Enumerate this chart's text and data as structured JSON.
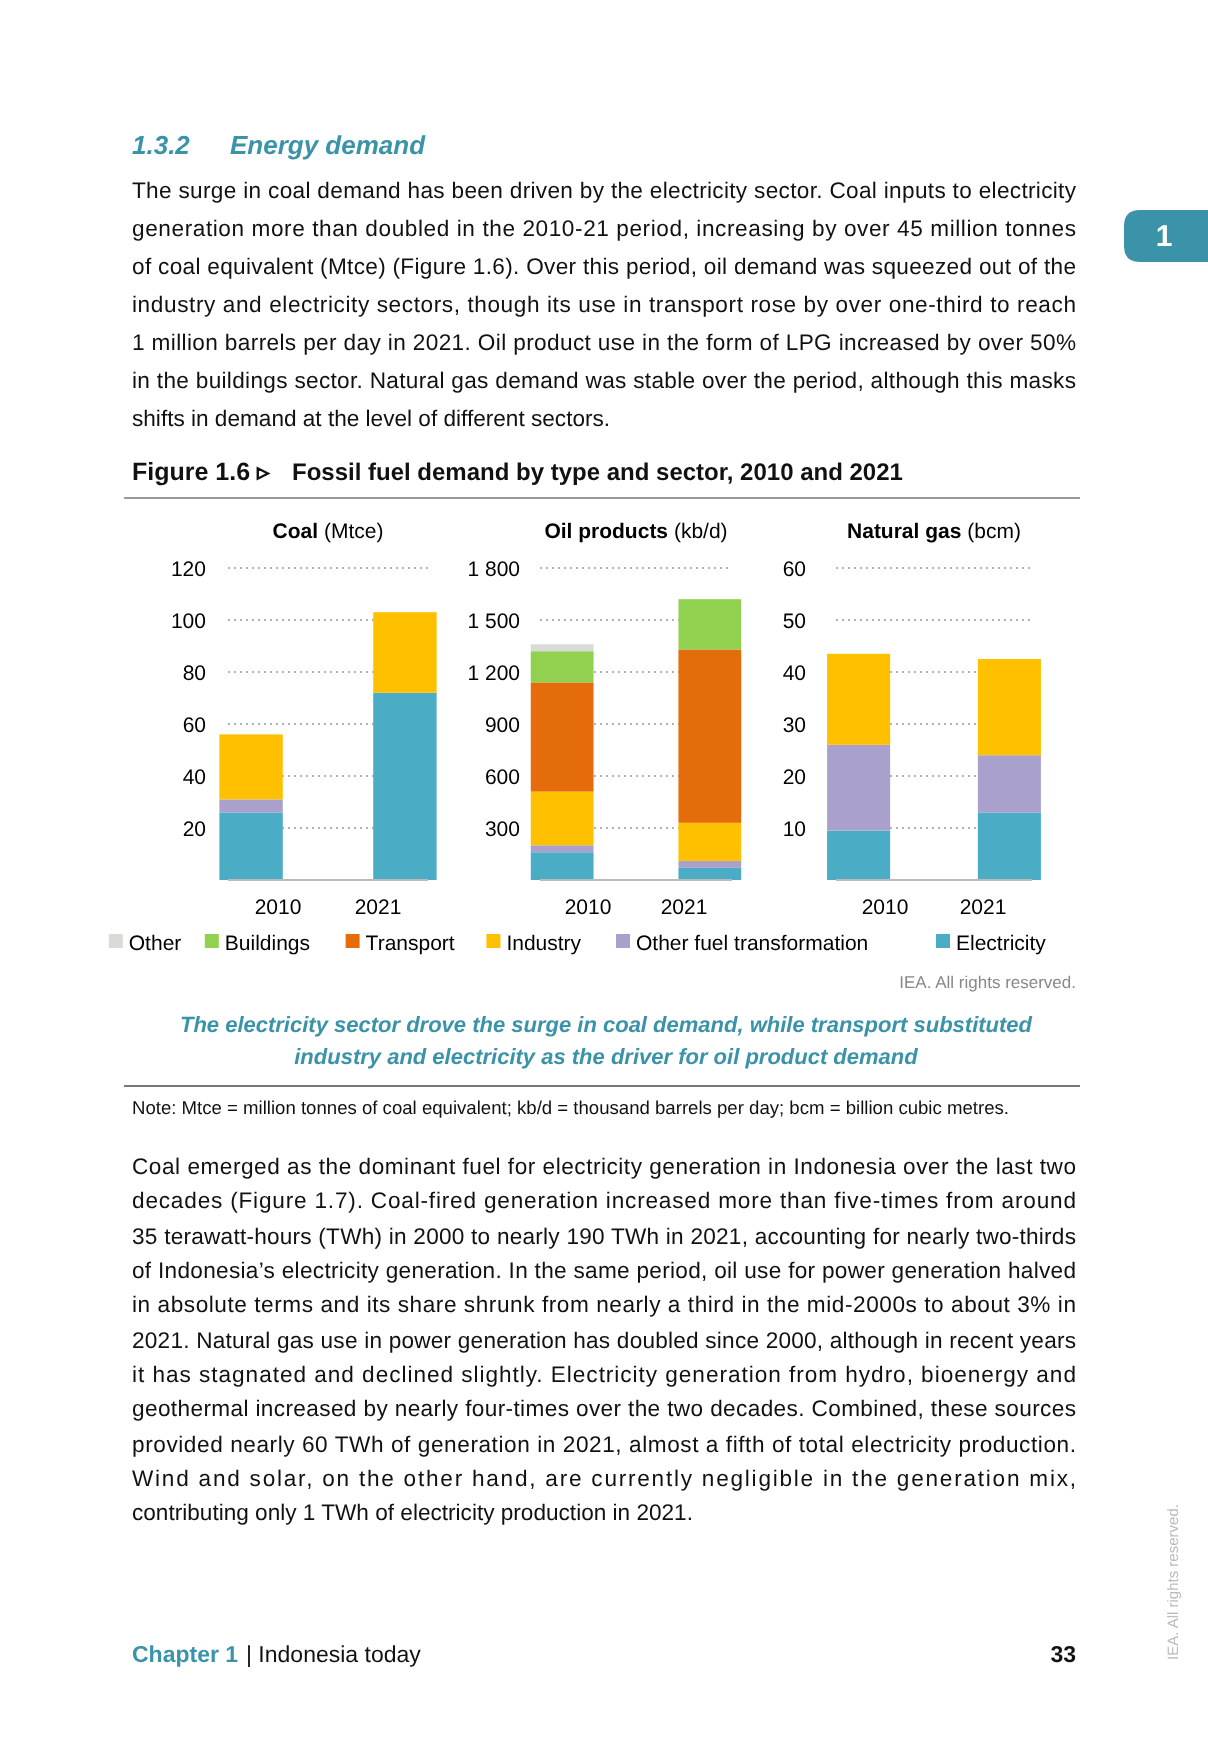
{
  "chart_data": [
    {
      "type": "bar",
      "stacked": true,
      "title": "Coal (Mtce)",
      "categories": [
        "2010",
        "2021"
      ],
      "ylim": [
        0,
        120
      ],
      "yticks": [
        {
          "value": 0,
          "label": null
        },
        20,
        40,
        60,
        80,
        100,
        120
      ],
      "grid": "y",
      "legend": "bottom",
      "series": [
        {
          "name": "Electricity",
          "color": "#4bacc6",
          "values": [
            26,
            72
          ]
        },
        {
          "name": "Other fuel transformation",
          "color": "#a9a1cc",
          "values": [
            5,
            null
          ]
        },
        {
          "name": "Industry",
          "color": "#ffc000",
          "values": [
            25,
            31
          ]
        },
        {
          "name": "Transport",
          "color": "#e46c0a",
          "values": [
            null,
            null
          ]
        },
        {
          "name": "Buildings",
          "color": "#92d050",
          "values": [
            null,
            null
          ]
        },
        {
          "name": "Other",
          "color": "#d9dcd6",
          "values": [
            null,
            null
          ]
        }
      ],
      "annotations": [
        "1.3.2",
        "Energy demand",
        "The surge in coal demand has been driven by the electricity sector. Coal inputs to electricity",
        "generation more than doubled in the 2010-21 period, increasing by over 45 million tonnes",
        "of coal equivalent (Mtce) (Figure 1.6). Over this period, oil demand was squeezed out of the",
        "industry and electricity sectors, though its use in transport rose by over one-third to reach",
        "1 million barrels per day in 2021. Oil product use in the form of LPG increased by over 50%",
        "in the buildings sector.  Natural gas demand was stable over the period, although this masks",
        "shifts in demand at the level of different sectors.",
        "1",
        "Figure 1.6 ▹",
        "Fossil fuel demand by type and sector, 2010 and 2021",
        "IEA. All rights reserved.",
        "The electricity sector drove the surge in coal demand, while transport substituted",
        "industry and electricity as the driver for oil product demand",
        "Note:  Mtce = million tonnes of coal equivalent; kb/d = thousand barrels per day; bcm = billion cubic metres.",
        "Coal emerged as the dominant fuel for electricity generation in Indonesia over the last two",
        "decades (Figure 1.7). Coal-fired generation increased more than five-times from around",
        "35 terawatt-hours (TWh) in 2000 to nearly 190 TWh in 2021, accounting for nearly two-thirds",
        "of Indonesia’s electricity generation. In the same period, oil use for power generation halved",
        "in absolute terms and its share shrunk from nearly a third in the mid-2000s to about 3% in",
        "2021. Natural gas use in power generation has doubled since 2000, although in recent years",
        "it has stagnated and declined slightly. Electricity generation from hydro, bioenergy and",
        "geothermal increased by nearly four-times over the two decades. Combined, these sources",
        "provided nearly 60 TWh of generation in 2021, almost a fifth of total electricity production.",
        "Wind and solar, on the other hand, are currently negligible in the generation mix,",
        "contributing only 1 TWh of electricity production in 2021.",
        "Chapter 1",
        "| Indonesia today",
        "33",
        "IEA. All rights reserved."
      ]
    },
    {
      "type": "bar",
      "stacked": true,
      "title": "Oil products (kb/d)",
      "categories": [
        "2010",
        "2021"
      ],
      "ylim": [
        0,
        1800
      ],
      "yticks": [
        {
          "value": 0,
          "label": null
        },
        300,
        600,
        900,
        {
          "value": 1200,
          "label": "1 200"
        },
        {
          "value": 1500,
          "label": "1 500"
        },
        {
          "value": 1800,
          "label": "1 800"
        }
      ],
      "grid": "y",
      "series": [
        {
          "color": "#4bacc6",
          "values": [
            160,
            70
          ]
        },
        {
          "color": "#a9a1cc",
          "values": [
            40,
            40
          ]
        },
        {
          "color": "#ffc000",
          "values": [
            310,
            220
          ]
        },
        {
          "color": "#e46c0a",
          "values": [
            630,
            1000
          ]
        },
        {
          "color": "#92d050",
          "values": [
            180,
            290
          ]
        },
        {
          "color": "#d9dcd6",
          "values": [
            40,
            null
          ]
        }
      ]
    },
    {
      "type": "bar",
      "stacked": true,
      "title": "Natural gas (bcm)",
      "categories": [
        "2010",
        "2021"
      ],
      "ylim": [
        0,
        60
      ],
      "yticks": [
        {
          "value": 0,
          "label": null
        },
        10,
        20,
        30,
        40,
        50,
        60
      ],
      "grid": "y",
      "series": [
        {
          "color": "#4bacc6",
          "values": [
            9.5,
            13
          ]
        },
        {
          "color": "#a9a1cc",
          "values": [
            16.5,
            11
          ]
        },
        {
          "color": "#ffc000",
          "values": [
            17.5,
            18.5
          ]
        }
      ]
    }
  ]
}
